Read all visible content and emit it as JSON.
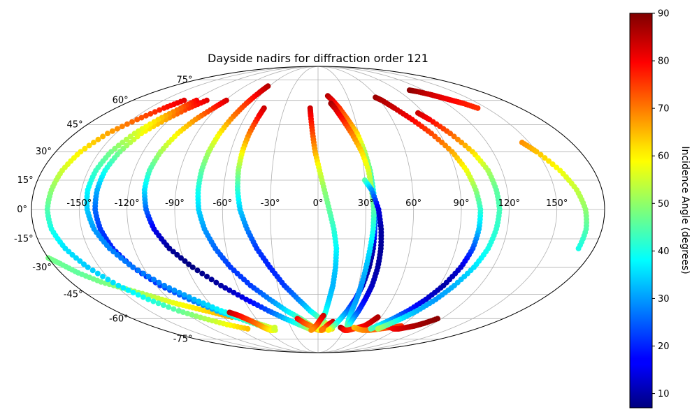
{
  "chart_data": {
    "type": "scatter",
    "projection": "mollweide",
    "title": "Dayside nadirs for diffraction order 121",
    "xlabel": "",
    "ylabel": "",
    "grid": true,
    "lon_ticks": [
      -150,
      -120,
      -90,
      -60,
      -30,
      0,
      30,
      60,
      90,
      120,
      150
    ],
    "lon_tick_labels": [
      "-150°",
      "-120°",
      "-90°",
      "-60°",
      "-30°",
      "0°",
      "30°",
      "60°",
      "90°",
      "120°",
      "150°"
    ],
    "lat_ticks": [
      -75,
      -60,
      -45,
      -30,
      -15,
      0,
      15,
      30,
      45,
      60,
      75
    ],
    "lat_tick_labels": [
      "-75°",
      "-60°",
      "-45°",
      "-30°",
      "-15°",
      "0°",
      "15°",
      "30°",
      "45°",
      "60°",
      "75°"
    ],
    "colorbar": {
      "label": "Incidence Angle (degrees)",
      "colormap": "jet",
      "range": [
        7,
        90
      ],
      "ticks": [
        10,
        20,
        30,
        40,
        50,
        60,
        70,
        80,
        90
      ],
      "tick_labels": [
        "10",
        "20",
        "30",
        "40",
        "50",
        "60",
        "70",
        "80",
        "90"
      ]
    },
    "series": [
      {
        "lat": [
          -25,
          -28,
          -33,
          -38,
          -42,
          -46,
          -50,
          -53,
          -56,
          -59
        ],
        "lon": [
          -180,
          -175,
          -168,
          -158,
          -145,
          -132,
          -120,
          -108,
          -95,
          -82
        ],
        "value": [
          48,
          47,
          46,
          48,
          50,
          53,
          57,
          60,
          63,
          67
        ]
      },
      {
        "lat": [
          60,
          55,
          48,
          40,
          30,
          20,
          10,
          0,
          -10,
          -20,
          -30,
          -40,
          -48,
          -55,
          -60,
          -64,
          -67
        ],
        "lon": [
          -130,
          -137,
          -146,
          -156,
          -163,
          -167,
          -169,
          -170,
          -169,
          -165,
          -158,
          -148,
          -137,
          -124,
          -110,
          -96,
          -80
        ],
        "value": [
          82,
          78,
          72,
          66,
          60,
          55,
          50,
          45,
          40,
          36,
          34,
          36,
          40,
          46,
          52,
          58,
          64
        ]
      },
      {
        "lat": [
          60,
          55,
          48,
          40,
          30,
          20,
          10,
          0,
          -10,
          -20,
          -30,
          -40,
          -48,
          -55,
          -60,
          -65,
          -68
        ],
        "lon": [
          -108,
          -115,
          -123,
          -131,
          -136,
          -139,
          -140,
          -140,
          -138,
          -134,
          -127,
          -117,
          -104,
          -90,
          -76,
          -62,
          -50
        ],
        "value": [
          82,
          76,
          66,
          58,
          48,
          40,
          32,
          26,
          22,
          20,
          20,
          22,
          26,
          32,
          40,
          48,
          55
        ]
      },
      {
        "lat": [
          60,
          55,
          48,
          40,
          30,
          20,
          10,
          0,
          -10,
          -20,
          -30,
          -40,
          -48,
          -55,
          -60,
          -64,
          -67
        ],
        "lon": [
          -118,
          -122,
          -129,
          -136,
          -142,
          -145,
          -146,
          -145,
          -142,
          -136,
          -127,
          -114,
          -100,
          -86,
          -72,
          -60,
          -50
        ],
        "value": [
          80,
          72,
          62,
          55,
          48,
          43,
          38,
          34,
          30,
          28,
          27,
          28,
          32,
          38,
          45,
          52,
          58
        ]
      },
      {
        "lat": [
          60,
          55,
          48,
          40,
          30,
          20,
          10,
          0,
          -10,
          -20,
          -30,
          -40,
          -48,
          -55,
          -60,
          -64,
          -67
        ],
        "lon": [
          -89,
          -93,
          -99,
          -104,
          -108,
          -110,
          -110,
          -108,
          -104,
          -97,
          -86,
          -72,
          -58,
          -44,
          -32,
          -20,
          -10
        ],
        "value": [
          83,
          77,
          68,
          60,
          52,
          44,
          36,
          26,
          16,
          9,
          7,
          10,
          16,
          24,
          33,
          42,
          52
        ]
      },
      {
        "lat": [
          -56,
          -58,
          -61,
          -64,
          -66,
          -67,
          -68,
          -68,
          -67,
          -66
        ],
        "lon": [
          -80,
          -74,
          -68,
          -63,
          -60,
          -58,
          -55,
          -52,
          -50,
          -48
        ],
        "value": [
          85,
          80,
          75,
          70,
          66,
          63,
          60,
          58,
          56,
          55
        ]
      },
      {
        "lat": [
          70,
          65,
          58,
          50,
          40,
          30,
          20,
          10,
          0,
          -10,
          -20,
          -30,
          -40,
          -48,
          -55,
          -60,
          -65,
          -68
        ],
        "lon": [
          -62,
          -64,
          -67,
          -70,
          -73,
          -75,
          -76,
          -76,
          -75,
          -72,
          -67,
          -60,
          -50,
          -39,
          -28,
          -17,
          -7,
          3
        ],
        "value": [
          86,
          82,
          76,
          70,
          60,
          52,
          46,
          40,
          35,
          30,
          26,
          22,
          22,
          28,
          36,
          45,
          55,
          62
        ]
      },
      {
        "lat": [
          55,
          50,
          40,
          30,
          20,
          10,
          0,
          -10,
          -20,
          -30,
          -40,
          -48,
          -55,
          -60,
          -64,
          -67
        ],
        "lon": [
          -48,
          -49,
          -51,
          -52,
          -52,
          -51,
          -49,
          -45,
          -40,
          -33,
          -25,
          -16,
          -7,
          2,
          10,
          16
        ],
        "value": [
          84,
          80,
          70,
          60,
          50,
          42,
          34,
          28,
          22,
          20,
          22,
          28,
          36,
          46,
          55,
          62
        ]
      },
      {
        "lat": [
          -60,
          -63,
          -65,
          -67,
          -68,
          -68,
          -67
        ],
        "lon": [
          -20,
          -14,
          -8,
          -3,
          1,
          5,
          8
        ],
        "value": [
          80,
          74,
          70,
          66,
          63,
          62,
          62
        ]
      },
      {
        "lat": [
          55,
          50,
          40,
          30,
          20,
          10,
          0,
          -10,
          -20,
          -30,
          -40,
          -48,
          -55,
          -60,
          -64,
          -67
        ],
        "lon": [
          -7,
          -6,
          -4,
          -2,
          1,
          4,
          7,
          10,
          12,
          12,
          11,
          9,
          7,
          5,
          2,
          0
        ],
        "value": [
          84,
          80,
          74,
          66,
          56,
          50,
          46,
          42,
          38,
          34,
          32,
          34,
          38,
          44,
          52,
          58
        ]
      },
      {
        "lat": [
          -58,
          -61,
          -64,
          -66,
          -67,
          -68
        ],
        "lon": [
          5,
          2,
          -1,
          -4,
          -6,
          -8
        ],
        "value": [
          84,
          80,
          76,
          72,
          70,
          68
        ]
      },
      {
        "lat": [
          -62,
          -64,
          -66,
          -67,
          -68
        ],
        "lon": [
          15,
          11,
          8,
          6,
          4
        ],
        "value": [
          85,
          80,
          75,
          72,
          70
        ]
      },
      {
        "lat": [
          63,
          60,
          55,
          48,
          40,
          30,
          20,
          10,
          0,
          -10,
          -20,
          -30,
          -40,
          -48,
          -55,
          -60,
          -64,
          -67,
          -68
        ],
        "lon": [
          10,
          14,
          19,
          24,
          29,
          32,
          34,
          35,
          36,
          36,
          36,
          35,
          33,
          30,
          26,
          22,
          18,
          14,
          12
        ],
        "value": [
          86,
          82,
          76,
          70,
          62,
          52,
          46,
          40,
          34,
          22,
          12,
          9,
          12,
          18,
          26,
          34,
          42,
          52,
          60
        ]
      },
      {
        "lat": [
          58,
          55,
          48,
          40,
          30,
          20,
          10,
          0,
          -10,
          -20,
          -30,
          -40,
          -48,
          -55,
          -60,
          -64,
          -67
        ],
        "lon": [
          12,
          15,
          20,
          25,
          30,
          33,
          34,
          35,
          35,
          34,
          33,
          32,
          31,
          30,
          30,
          31,
          33
        ],
        "value": [
          88,
          84,
          78,
          70,
          62,
          56,
          50,
          45,
          40,
          36,
          33,
          30,
          30,
          32,
          36,
          44,
          52
        ]
      },
      {
        "lat": [
          15,
          10,
          0,
          -10,
          -20,
          -30,
          -40,
          -48,
          -55,
          -60,
          -64,
          -67
        ],
        "lon": [
          30,
          34,
          38,
          40,
          41,
          41,
          40,
          38,
          36,
          34,
          33,
          32
        ],
        "value": [
          45,
          30,
          15,
          10,
          9,
          10,
          12,
          16,
          22,
          30,
          38,
          46
        ]
      },
      {
        "lat": [
          -66,
          -67,
          -68,
          -68,
          -67,
          -66,
          -65,
          -63,
          -61,
          -59
        ],
        "lon": [
          25,
          28,
          31,
          35,
          40,
          45,
          50,
          53,
          55,
          57
        ],
        "value": [
          88,
          84,
          80,
          78,
          76,
          78,
          80,
          82,
          84,
          86
        ]
      },
      {
        "lat": [
          -66,
          -67,
          -68,
          -68,
          -67,
          -66,
          -65
        ],
        "lon": [
          40,
          45,
          52,
          60,
          70,
          80,
          90
        ],
        "value": [
          64,
          66,
          68,
          70,
          72,
          74,
          76
        ]
      },
      {
        "lat": [
          -64,
          -65,
          -66,
          -67,
          -67,
          -66,
          -65,
          -63,
          -60
        ],
        "lon": [
          68,
          74,
          80,
          86,
          92,
          98,
          104,
          110,
          116
        ],
        "value": [
          74,
          76,
          78,
          80,
          82,
          84,
          86,
          88,
          89
        ]
      },
      {
        "lat": [
          62,
          60,
          55,
          48,
          40,
          30,
          20,
          10,
          0,
          -10,
          -20,
          -30,
          -40,
          -48,
          -55,
          -60,
          -64,
          -67
        ],
        "lon": [
          58,
          62,
          68,
          76,
          84,
          92,
          97,
          100,
          102,
          102,
          101,
          98,
          93,
          87,
          80,
          73,
          66,
          60
        ],
        "value": [
          88,
          86,
          84,
          80,
          74,
          66,
          58,
          50,
          42,
          34,
          24,
          14,
          10,
          14,
          20,
          28,
          36,
          44
        ]
      },
      {
        "lat": [
          52,
          48,
          40,
          30,
          20,
          10,
          0,
          -10,
          -20,
          -30,
          -40,
          -48,
          -55,
          -60,
          -64,
          -67
        ],
        "lon": [
          85,
          90,
          98,
          106,
          111,
          113,
          114,
          113,
          111,
          107,
          101,
          95,
          88,
          81,
          74,
          68
        ],
        "value": [
          84,
          80,
          72,
          62,
          52,
          46,
          44,
          42,
          40,
          36,
          32,
          30,
          32,
          36,
          44,
          52
        ]
      },
      {
        "lat": [
          67,
          66,
          64,
          62,
          60,
          58,
          55
        ],
        "lon": [
          104,
          110,
          118,
          124,
          130,
          136,
          142
        ],
        "value": [
          89,
          87,
          84,
          82,
          80,
          78,
          76
        ]
      },
      {
        "lat": [
          35,
          30,
          20,
          10,
          0,
          -10,
          -20
        ],
        "lon": [
          145,
          150,
          158,
          164,
          168,
          170,
          170
        ],
        "value": [
          68,
          64,
          58,
          54,
          50,
          45,
          40
        ]
      }
    ]
  }
}
